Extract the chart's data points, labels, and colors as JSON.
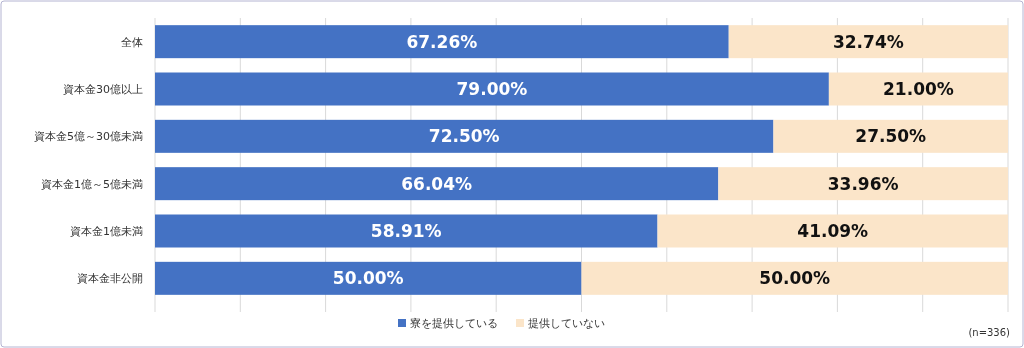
{
  "chart_data": {
    "type": "bar",
    "orientation": "horizontal",
    "stacked": true,
    "categories": [
      "全体",
      "資本金30億以上",
      "資本金5億～30億未満",
      "資本金1億～5億未満",
      "資本金1億未満",
      "資本金非公開"
    ],
    "series": [
      {
        "name": "寮を提供している",
        "color": "#4472c4",
        "values": [
          67.26,
          79.0,
          72.5,
          66.04,
          58.91,
          50.0
        ],
        "value_labels": [
          "67.26%",
          "79.00%",
          "72.50%",
          "66.04%",
          "58.91%",
          "50.00%"
        ]
      },
      {
        "name": "提供していない",
        "color": "#fbe5c9",
        "values": [
          32.74,
          21.0,
          27.5,
          33.96,
          41.09,
          50.0
        ],
        "value_labels": [
          "32.74%",
          "21.00%",
          "27.50%",
          "33.96%",
          "41.09%",
          "50.00%"
        ]
      }
    ],
    "xlim": [
      0,
      100
    ],
    "xticks": [
      {
        "value": 0,
        "label": null
      },
      {
        "value": 10,
        "label": null
      },
      {
        "value": 20,
        "label": null
      },
      {
        "value": 30,
        "label": null
      },
      {
        "value": 40,
        "label": null
      },
      {
        "value": 50,
        "label": null
      },
      {
        "value": 60,
        "label": null
      },
      {
        "value": 70,
        "label": null
      },
      {
        "value": 80,
        "label": null
      },
      {
        "value": 90,
        "label": null
      },
      {
        "value": 100,
        "label": null
      }
    ],
    "grid": "x",
    "legend": "bottom",
    "tick_labels": "y",
    "annotations": [
      "(n=336)"
    ]
  }
}
